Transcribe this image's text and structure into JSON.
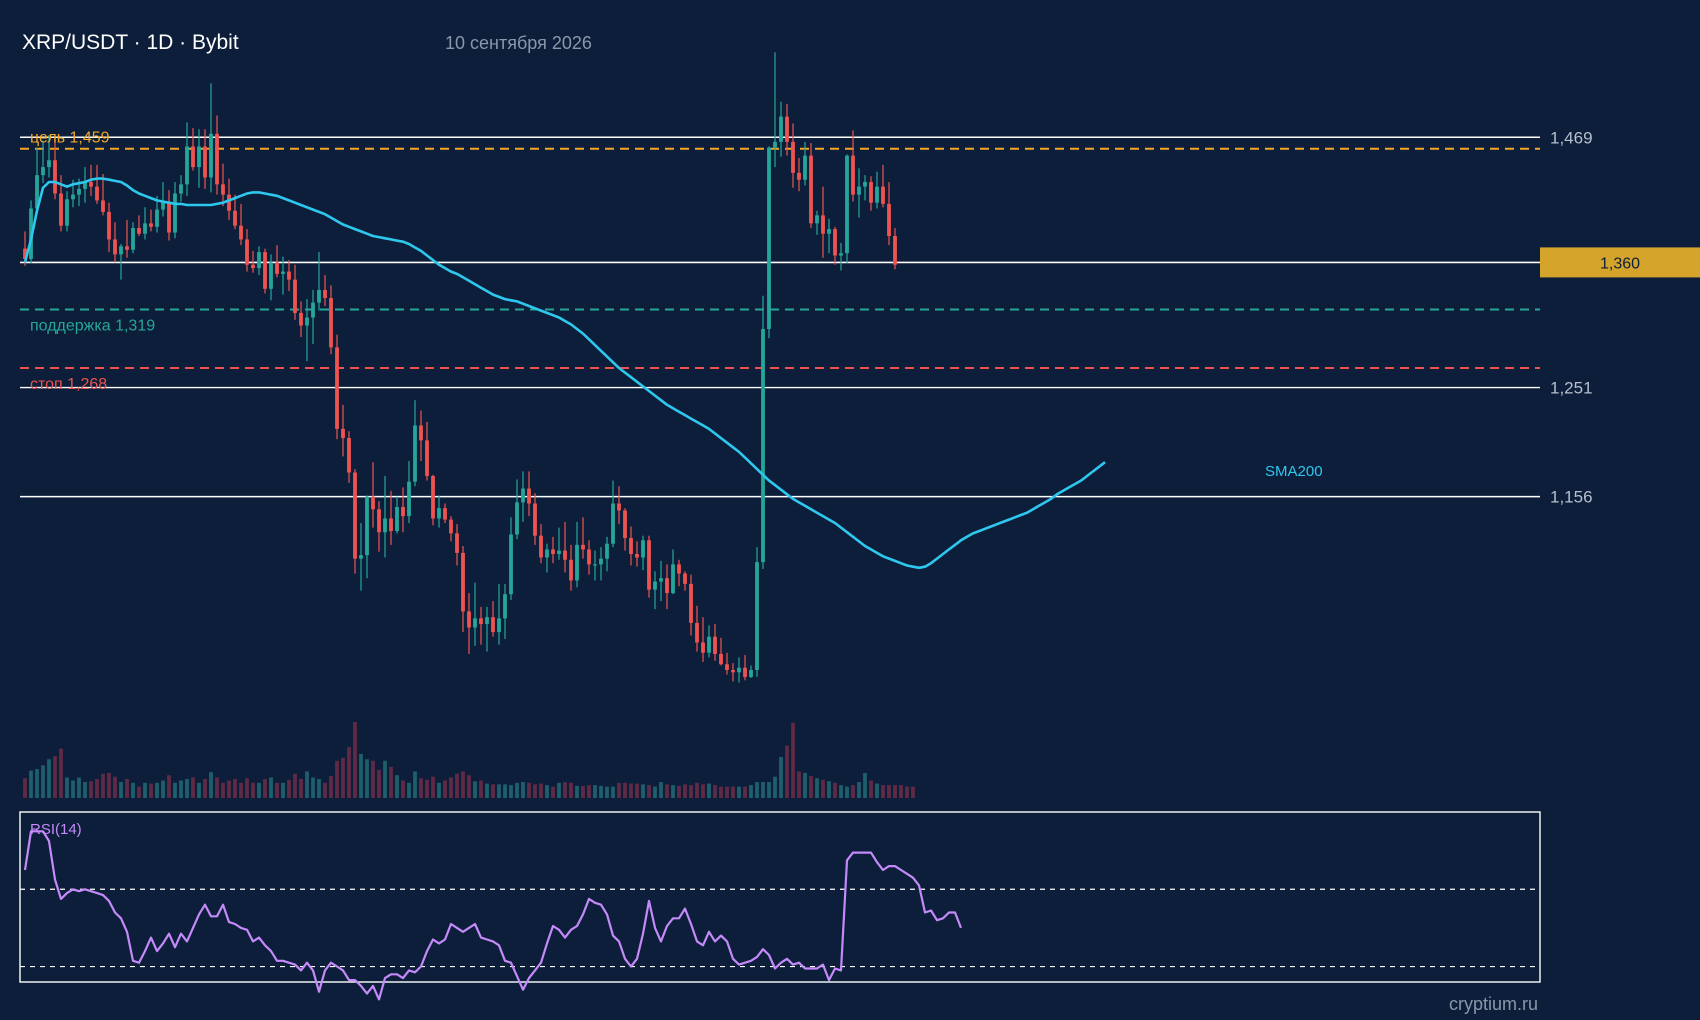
{
  "header": {
    "title": "XRP/USDT · 1D · Bybit",
    "date": "10 сентября 2026"
  },
  "watermark": "cryptium.ru",
  "colors": {
    "background": "#0c1e3a",
    "up": "#26a69a",
    "down": "#ef5350",
    "sma": "#2ec8ee",
    "rsi": "#c58af9",
    "target": "#f5a623",
    "support": "#26a69a",
    "stop": "#ef5350",
    "current": "#d4a52a",
    "level": "#ffffff"
  },
  "chart_data": {
    "type": "candlestick",
    "ylim": [
      1.005,
      1.545
    ],
    "price_levels": [
      {
        "value": 1.469,
        "label": "1,469"
      },
      {
        "value": 1.251,
        "label": "1,251"
      },
      {
        "value": 1.156,
        "label": "1,156"
      }
    ],
    "current_price": {
      "value": 1.36,
      "label": "1,360"
    },
    "annotations": [
      {
        "name": "target",
        "value": 1.459,
        "label": "цель 1,459"
      },
      {
        "name": "support",
        "value": 1.319,
        "label": "поддержка 1,319"
      },
      {
        "name": "stop",
        "value": 1.268,
        "label": "стоп 1,268"
      }
    ],
    "sma": {
      "name": "SMA200",
      "values": [
        1.36,
        1.38,
        1.405,
        1.425,
        1.43,
        1.43,
        1.428,
        1.426,
        1.428,
        1.429,
        1.43,
        1.432,
        1.433,
        1.433,
        1.432,
        1.431,
        1.43,
        1.427,
        1.423,
        1.42,
        1.418,
        1.416,
        1.414,
        1.413,
        1.412,
        1.411,
        1.411,
        1.41,
        1.41,
        1.41,
        1.41,
        1.41,
        1.411,
        1.412,
        1.414,
        1.416,
        1.418,
        1.42,
        1.421,
        1.421,
        1.42,
        1.419,
        1.418,
        1.416,
        1.414,
        1.412,
        1.41,
        1.408,
        1.406,
        1.404,
        1.402,
        1.399,
        1.396,
        1.393,
        1.391,
        1.389,
        1.387,
        1.385,
        1.383,
        1.382,
        1.381,
        1.38,
        1.379,
        1.378,
        1.376,
        1.373,
        1.37,
        1.366,
        1.362,
        1.358,
        1.355,
        1.352,
        1.35,
        1.347,
        1.344,
        1.341,
        1.338,
        1.335,
        1.332,
        1.33,
        1.328,
        1.327,
        1.326,
        1.324,
        1.322,
        1.32,
        1.318,
        1.316,
        1.314,
        1.312,
        1.309,
        1.306,
        1.302,
        1.298,
        1.293,
        1.288,
        1.283,
        1.278,
        1.273,
        1.268,
        1.264,
        1.26,
        1.256,
        1.252,
        1.248,
        1.244,
        1.24,
        1.236,
        1.233,
        1.23,
        1.227,
        1.224,
        1.221,
        1.218,
        1.215,
        1.211,
        1.207,
        1.203,
        1.199,
        1.195,
        1.19,
        1.185,
        1.18,
        1.175,
        1.17,
        1.166,
        1.162,
        1.158,
        1.154,
        1.151,
        1.148,
        1.145,
        1.142,
        1.139,
        1.136,
        1.133,
        1.129,
        1.125,
        1.121,
        1.117,
        1.113,
        1.11,
        1.107,
        1.104,
        1.102,
        1.1,
        1.098,
        1.096,
        1.095,
        1.094,
        1.095,
        1.098,
        1.102,
        1.106,
        1.11,
        1.114,
        1.118,
        1.121,
        1.124,
        1.126,
        1.128,
        1.13,
        1.132,
        1.134,
        1.136,
        1.138,
        1.14,
        1.142,
        1.145,
        1.148,
        1.151,
        1.154,
        1.158,
        1.161,
        1.164,
        1.167,
        1.17,
        1.174,
        1.178,
        1.182,
        1.186
      ]
    },
    "ohlc": [
      [
        1.372,
        1.387,
        1.357,
        1.363
      ],
      [
        1.363,
        1.414,
        1.359,
        1.407
      ],
      [
        1.407,
        1.46,
        1.403,
        1.436
      ],
      [
        1.436,
        1.466,
        1.429,
        1.443
      ],
      [
        1.443,
        1.471,
        1.434,
        1.449
      ],
      [
        1.449,
        1.469,
        1.415,
        1.42
      ],
      [
        1.42,
        1.436,
        1.387,
        1.392
      ],
      [
        1.392,
        1.422,
        1.387,
        1.415
      ],
      [
        1.415,
        1.432,
        1.408,
        1.419
      ],
      [
        1.419,
        1.433,
        1.409,
        1.424
      ],
      [
        1.424,
        1.443,
        1.412,
        1.43
      ],
      [
        1.43,
        1.445,
        1.418,
        1.426
      ],
      [
        1.426,
        1.445,
        1.411,
        1.414
      ],
      [
        1.414,
        1.437,
        1.401,
        1.404
      ],
      [
        1.404,
        1.412,
        1.369,
        1.38
      ],
      [
        1.38,
        1.395,
        1.36,
        1.367
      ],
      [
        1.367,
        1.376,
        1.345,
        1.374
      ],
      [
        1.374,
        1.397,
        1.364,
        1.371
      ],
      [
        1.371,
        1.395,
        1.368,
        1.39
      ],
      [
        1.39,
        1.401,
        1.383,
        1.385
      ],
      [
        1.385,
        1.408,
        1.38,
        1.394
      ],
      [
        1.394,
        1.406,
        1.387,
        1.391
      ],
      [
        1.391,
        1.418,
        1.386,
        1.406
      ],
      [
        1.406,
        1.43,
        1.4,
        1.412
      ],
      [
        1.412,
        1.423,
        1.379,
        1.386
      ],
      [
        1.386,
        1.43,
        1.381,
        1.42
      ],
      [
        1.42,
        1.436,
        1.413,
        1.428
      ],
      [
        1.428,
        1.482,
        1.418,
        1.461
      ],
      [
        1.461,
        1.477,
        1.44,
        1.443
      ],
      [
        1.443,
        1.476,
        1.425,
        1.461
      ],
      [
        1.461,
        1.476,
        1.424,
        1.434
      ],
      [
        1.434,
        1.516,
        1.421,
        1.472
      ],
      [
        1.472,
        1.488,
        1.419,
        1.428
      ],
      [
        1.428,
        1.446,
        1.409,
        1.419
      ],
      [
        1.419,
        1.433,
        1.397,
        1.405
      ],
      [
        1.405,
        1.419,
        1.389,
        1.392
      ],
      [
        1.392,
        1.411,
        1.375,
        1.38
      ],
      [
        1.38,
        1.389,
        1.352,
        1.358
      ],
      [
        1.358,
        1.37,
        1.351,
        1.355
      ],
      [
        1.355,
        1.374,
        1.349,
        1.369
      ],
      [
        1.369,
        1.372,
        1.333,
        1.337
      ],
      [
        1.337,
        1.367,
        1.327,
        1.36
      ],
      [
        1.36,
        1.375,
        1.347,
        1.35
      ],
      [
        1.35,
        1.365,
        1.332,
        1.352
      ],
      [
        1.352,
        1.362,
        1.335,
        1.345
      ],
      [
        1.345,
        1.358,
        1.31,
        1.316
      ],
      [
        1.316,
        1.326,
        1.295,
        1.305
      ],
      [
        1.305,
        1.328,
        1.274,
        1.312
      ],
      [
        1.312,
        1.336,
        1.289,
        1.325
      ],
      [
        1.325,
        1.369,
        1.318,
        1.336
      ],
      [
        1.336,
        1.349,
        1.322,
        1.329
      ],
      [
        1.329,
        1.34,
        1.28,
        1.286
      ],
      [
        1.286,
        1.297,
        1.206,
        1.215
      ],
      [
        1.215,
        1.236,
        1.191,
        1.207
      ],
      [
        1.207,
        1.213,
        1.168,
        1.177
      ],
      [
        1.177,
        1.18,
        1.089,
        1.102
      ],
      [
        1.102,
        1.133,
        1.074,
        1.105
      ],
      [
        1.105,
        1.157,
        1.085,
        1.156
      ],
      [
        1.156,
        1.186,
        1.129,
        1.145
      ],
      [
        1.145,
        1.152,
        1.108,
        1.125
      ],
      [
        1.125,
        1.174,
        1.103,
        1.137
      ],
      [
        1.137,
        1.161,
        1.114,
        1.126
      ],
      [
        1.126,
        1.156,
        1.124,
        1.147
      ],
      [
        1.147,
        1.164,
        1.125,
        1.139
      ],
      [
        1.139,
        1.187,
        1.133,
        1.169
      ],
      [
        1.169,
        1.24,
        1.165,
        1.218
      ],
      [
        1.218,
        1.231,
        1.187,
        1.205
      ],
      [
        1.205,
        1.221,
        1.17,
        1.174
      ],
      [
        1.174,
        1.175,
        1.131,
        1.137
      ],
      [
        1.137,
        1.157,
        1.129,
        1.146
      ],
      [
        1.146,
        1.15,
        1.133,
        1.136
      ],
      [
        1.136,
        1.139,
        1.117,
        1.124
      ],
      [
        1.124,
        1.132,
        1.096,
        1.107
      ],
      [
        1.107,
        1.113,
        1.038,
        1.056
      ],
      [
        1.056,
        1.072,
        1.019,
        1.042
      ],
      [
        1.042,
        1.081,
        1.026,
        1.05
      ],
      [
        1.05,
        1.06,
        1.027,
        1.045
      ],
      [
        1.045,
        1.06,
        1.021,
        1.051
      ],
      [
        1.051,
        1.065,
        1.034,
        1.038
      ],
      [
        1.038,
        1.08,
        1.027,
        1.05
      ],
      [
        1.05,
        1.08,
        1.032,
        1.071
      ],
      [
        1.071,
        1.138,
        1.066,
        1.123
      ],
      [
        1.123,
        1.171,
        1.119,
        1.151
      ],
      [
        1.151,
        1.178,
        1.134,
        1.163
      ],
      [
        1.163,
        1.178,
        1.139,
        1.15
      ],
      [
        1.15,
        1.159,
        1.114,
        1.122
      ],
      [
        1.122,
        1.132,
        1.098,
        1.103
      ],
      [
        1.103,
        1.115,
        1.09,
        1.11
      ],
      [
        1.11,
        1.121,
        1.098,
        1.106
      ],
      [
        1.106,
        1.129,
        1.101,
        1.109
      ],
      [
        1.109,
        1.134,
        1.09,
        1.101
      ],
      [
        1.101,
        1.114,
        1.074,
        1.083
      ],
      [
        1.083,
        1.134,
        1.077,
        1.114
      ],
      [
        1.114,
        1.138,
        1.102,
        1.11
      ],
      [
        1.11,
        1.118,
        1.088,
        1.097
      ],
      [
        1.097,
        1.109,
        1.083,
        1.097
      ],
      [
        1.097,
        1.112,
        1.083,
        1.102
      ],
      [
        1.102,
        1.121,
        1.091,
        1.115
      ],
      [
        1.115,
        1.17,
        1.112,
        1.15
      ],
      [
        1.15,
        1.165,
        1.132,
        1.144
      ],
      [
        1.144,
        1.146,
        1.109,
        1.12
      ],
      [
        1.12,
        1.13,
        1.096,
        1.106
      ],
      [
        1.106,
        1.117,
        1.095,
        1.103
      ],
      [
        1.103,
        1.122,
        1.092,
        1.118
      ],
      [
        1.118,
        1.122,
        1.068,
        1.075
      ],
      [
        1.075,
        1.091,
        1.058,
        1.082
      ],
      [
        1.082,
        1.1,
        1.065,
        1.085
      ],
      [
        1.085,
        1.097,
        1.058,
        1.072
      ],
      [
        1.072,
        1.11,
        1.071,
        1.097
      ],
      [
        1.097,
        1.101,
        1.078,
        1.089
      ],
      [
        1.089,
        1.091,
        1.074,
        1.08
      ],
      [
        1.08,
        1.088,
        1.035,
        1.046
      ],
      [
        1.046,
        1.061,
        1.021,
        1.029
      ],
      [
        1.029,
        1.051,
        1.012,
        1.02
      ],
      [
        1.02,
        1.044,
        1.016,
        1.034
      ],
      [
        1.034,
        1.045,
        1.013,
        1.019
      ],
      [
        1.019,
        1.033,
        1.009,
        1.01
      ],
      [
        1.01,
        1.02,
        1.001,
        1.005
      ],
      [
        1.005,
        1.011,
        0.995,
        1.003
      ],
      [
        1.003,
        1.016,
        0.994,
        1.007
      ],
      [
        1.007,
        1.018,
        0.996,
        0.999
      ],
      [
        0.999,
        1.009,
        0.998,
        1.005
      ],
      [
        1.005,
        1.112,
        0.999,
        1.099
      ],
      [
        1.099,
        1.331,
        1.093,
        1.302
      ],
      [
        1.302,
        1.461,
        1.294,
        1.46
      ],
      [
        1.46,
        1.543,
        1.443,
        1.465
      ],
      [
        1.465,
        1.5,
        1.452,
        1.487
      ],
      [
        1.487,
        1.498,
        1.453,
        1.465
      ],
      [
        1.465,
        1.481,
        1.425,
        1.438
      ],
      [
        1.438,
        1.451,
        1.422,
        1.432
      ],
      [
        1.432,
        1.465,
        1.427,
        1.453
      ],
      [
        1.453,
        1.464,
        1.39,
        1.394
      ],
      [
        1.394,
        1.405,
        1.384,
        1.401
      ],
      [
        1.401,
        1.426,
        1.364,
        1.385
      ],
      [
        1.385,
        1.398,
        1.368,
        1.389
      ],
      [
        1.389,
        1.391,
        1.358,
        1.366
      ],
      [
        1.366,
        1.377,
        1.353,
        1.368
      ],
      [
        1.368,
        1.454,
        1.359,
        1.453
      ],
      [
        1.453,
        1.475,
        1.413,
        1.419
      ],
      [
        1.419,
        1.442,
        1.399,
        1.426
      ],
      [
        1.426,
        1.436,
        1.414,
        1.43
      ],
      [
        1.43,
        1.435,
        1.405,
        1.412
      ],
      [
        1.412,
        1.439,
        1.407,
        1.426
      ],
      [
        1.426,
        1.445,
        1.408,
        1.411
      ],
      [
        1.411,
        1.43,
        1.375,
        1.383
      ],
      [
        1.383,
        1.39,
        1.354,
        1.358
      ]
    ],
    "volume_relative": [
      0.26,
      0.36,
      0.38,
      0.43,
      0.51,
      0.55,
      0.65,
      0.27,
      0.23,
      0.27,
      0.21,
      0.22,
      0.25,
      0.32,
      0.33,
      0.28,
      0.21,
      0.25,
      0.2,
      0.15,
      0.2,
      0.19,
      0.2,
      0.23,
      0.3,
      0.2,
      0.23,
      0.25,
      0.27,
      0.2,
      0.25,
      0.34,
      0.27,
      0.2,
      0.23,
      0.25,
      0.2,
      0.26,
      0.2,
      0.2,
      0.25,
      0.27,
      0.2,
      0.2,
      0.24,
      0.32,
      0.25,
      0.35,
      0.27,
      0.25,
      0.2,
      0.29,
      0.49,
      0.53,
      0.67,
      1.0,
      0.58,
      0.51,
      0.49,
      0.37,
      0.49,
      0.41,
      0.3,
      0.23,
      0.2,
      0.35,
      0.26,
      0.24,
      0.28,
      0.2,
      0.23,
      0.27,
      0.32,
      0.35,
      0.3,
      0.22,
      0.23,
      0.19,
      0.18,
      0.18,
      0.18,
      0.17,
      0.2,
      0.21,
      0.2,
      0.18,
      0.19,
      0.17,
      0.15,
      0.2,
      0.21,
      0.2,
      0.16,
      0.16,
      0.17,
      0.17,
      0.16,
      0.15,
      0.15,
      0.2,
      0.2,
      0.19,
      0.19,
      0.18,
      0.17,
      0.15,
      0.21,
      0.18,
      0.17,
      0.16,
      0.18,
      0.17,
      0.2,
      0.18,
      0.19,
      0.17,
      0.15,
      0.15,
      0.15,
      0.15,
      0.15,
      0.17,
      0.21,
      0.21,
      0.21,
      0.28,
      0.54,
      0.69,
      0.99,
      0.35,
      0.33,
      0.29,
      0.26,
      0.24,
      0.22,
      0.2,
      0.17,
      0.15,
      0.17,
      0.21,
      0.33,
      0.23,
      0.19,
      0.17,
      0.17,
      0.17,
      0.17,
      0.15,
      0.15
    ],
    "rsi": {
      "name": "RSI(14)",
      "levels": [
        70,
        30
      ],
      "values": [
        80,
        100,
        100,
        100,
        95,
        75,
        65,
        68,
        70,
        69,
        70,
        69,
        68,
        67,
        64,
        58,
        55,
        48,
        33,
        32,
        38,
        45,
        38,
        42,
        47,
        40,
        47,
        43,
        50,
        57,
        62,
        56,
        56,
        62,
        53,
        52,
        50,
        49,
        43,
        45,
        41,
        38,
        33,
        33,
        32,
        31,
        28,
        32,
        28,
        17,
        28,
        32,
        30,
        28,
        23,
        23,
        20,
        16,
        20,
        13,
        24,
        26,
        26,
        24,
        28,
        27,
        30,
        38,
        44,
        42,
        44,
        52,
        50,
        48,
        50,
        52,
        45,
        44,
        43,
        41,
        33,
        32,
        25,
        18,
        24,
        28,
        32,
        42,
        51,
        49,
        45,
        49,
        51,
        57,
        65,
        63,
        62,
        57,
        46,
        43,
        34,
        30,
        34,
        47,
        64,
        50,
        43,
        51,
        55,
        55,
        60,
        52,
        43,
        41,
        48,
        43,
        46,
        43,
        34,
        31,
        32,
        33,
        35,
        39,
        36,
        29,
        32,
        34,
        31,
        32,
        29,
        29,
        29,
        31,
        23,
        29,
        28,
        85,
        89,
        89,
        89,
        89,
        84,
        80,
        82,
        82,
        80,
        78,
        76,
        72,
        58,
        59,
        54,
        55,
        58,
        58,
        50
      ]
    },
    "rsi_range": [
      22,
      110
    ]
  }
}
